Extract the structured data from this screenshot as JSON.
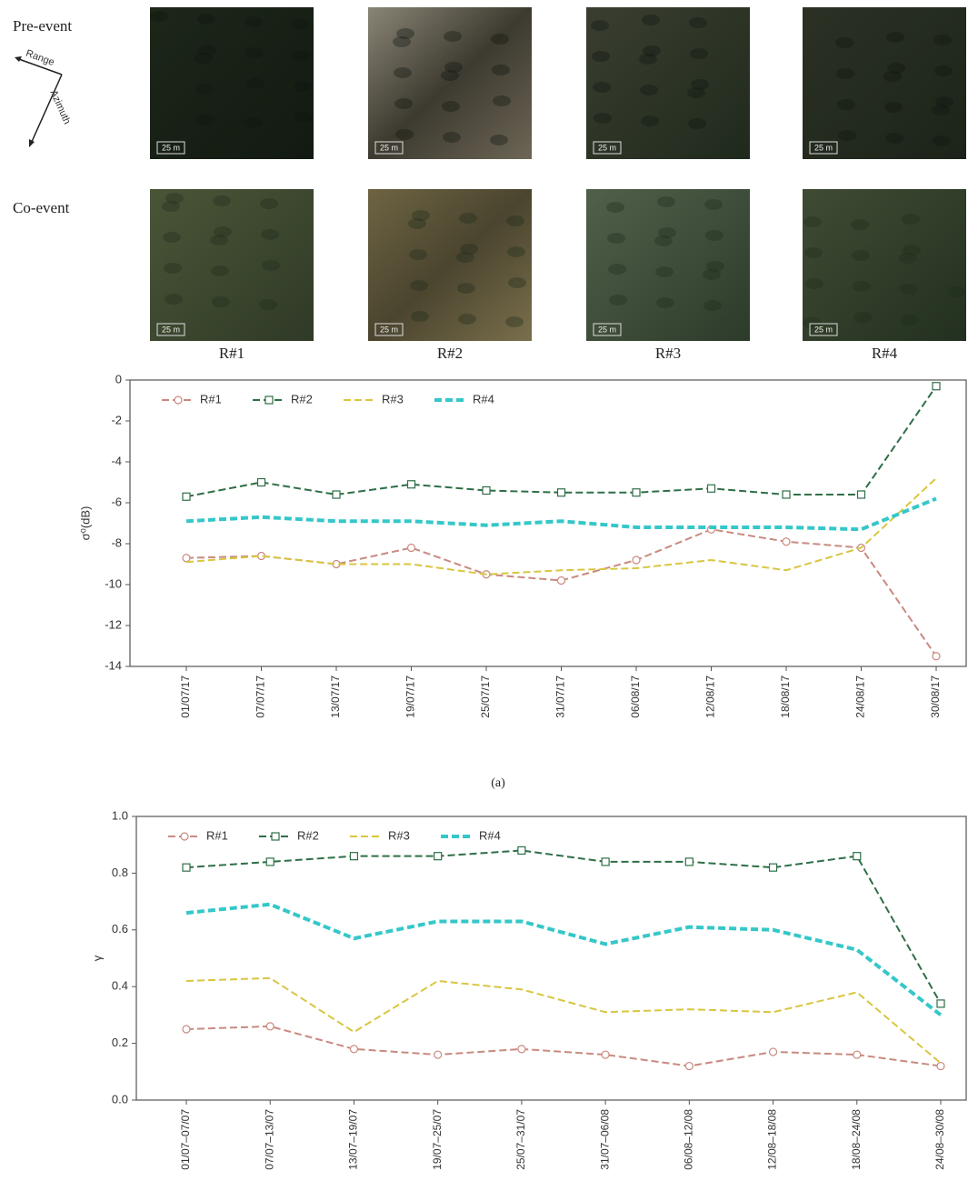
{
  "figure": {
    "rows": [
      "Pre-event",
      "Co-event"
    ],
    "columns": [
      "R#1",
      "R#2",
      "R#3",
      "R#4"
    ],
    "scale_bar": "25 m",
    "directions": [
      "Range",
      "Azimuth"
    ],
    "caption": "(a)"
  },
  "chart_data": [
    {
      "type": "line",
      "y_label": "σ⁰(dB)",
      "categories": [
        "01/07/17",
        "07/07/17",
        "13/07/17",
        "19/07/17",
        "25/07/17",
        "31/07/17",
        "06/08/17",
        "12/08/17",
        "18/08/17",
        "24/08/17",
        "30/08/17"
      ],
      "series": [
        {
          "name": "R#1",
          "color": "#c98a80",
          "marker": "circle",
          "values": [
            -8.7,
            -8.6,
            -9.0,
            -8.2,
            -9.5,
            -9.8,
            -8.8,
            -7.3,
            -7.9,
            -8.2,
            -13.5
          ]
        },
        {
          "name": "R#2",
          "color": "#2e6f46",
          "marker": "square",
          "values": [
            -5.7,
            -5.0,
            -5.6,
            -5.1,
            -5.4,
            -5.5,
            -5.5,
            -5.3,
            -5.6,
            -5.6,
            -0.3
          ]
        },
        {
          "name": "R#3",
          "color": "#d8c640",
          "values": [
            -8.9,
            -8.6,
            -9.0,
            -9.0,
            -9.5,
            -9.3,
            -9.2,
            -8.8,
            -9.3,
            -8.2,
            -4.8
          ]
        },
        {
          "name": "R#4",
          "color": "#35c7c9",
          "values": [
            -6.9,
            -6.7,
            -6.9,
            -6.9,
            -7.1,
            -6.9,
            -7.2,
            -7.2,
            -7.2,
            -7.3,
            -5.8
          ]
        }
      ],
      "ylim": [
        -14,
        0
      ],
      "yticks": [
        0,
        -2,
        -4,
        -6,
        -8,
        -10,
        -12,
        -14
      ]
    },
    {
      "type": "line",
      "y_label": "γ",
      "categories": [
        "01/07–07/07",
        "07/07–13/07",
        "13/07–19/07",
        "19/07–25/07",
        "25/07–31/07",
        "31/07–06/08",
        "06/08–12/08",
        "12/08–18/08",
        "18/08–24/08",
        "24/08–30/08"
      ],
      "series": [
        {
          "name": "R#1",
          "color": "#c98a80",
          "marker": "circle",
          "values": [
            0.25,
            0.26,
            0.18,
            0.16,
            0.18,
            0.16,
            0.12,
            0.17,
            0.16,
            0.12
          ]
        },
        {
          "name": "R#2",
          "color": "#2e6f46",
          "marker": "square",
          "values": [
            0.82,
            0.84,
            0.86,
            0.86,
            0.88,
            0.84,
            0.84,
            0.82,
            0.86,
            0.34
          ]
        },
        {
          "name": "R#3",
          "color": "#d8c640",
          "values": [
            0.42,
            0.43,
            0.24,
            0.42,
            0.39,
            0.31,
            0.32,
            0.31,
            0.38,
            0.13
          ]
        },
        {
          "name": "R#4",
          "color": "#35c7c9",
          "values": [
            0.66,
            0.69,
            0.57,
            0.63,
            0.63,
            0.55,
            0.61,
            0.6,
            0.53,
            0.3
          ]
        }
      ],
      "ylim": [
        0,
        1
      ],
      "yticks": [
        {
          "value": 0,
          "label": "0.0"
        },
        0.2,
        0.4,
        0.6,
        0.8,
        {
          "value": 1,
          "label": "1.0"
        }
      ]
    }
  ]
}
